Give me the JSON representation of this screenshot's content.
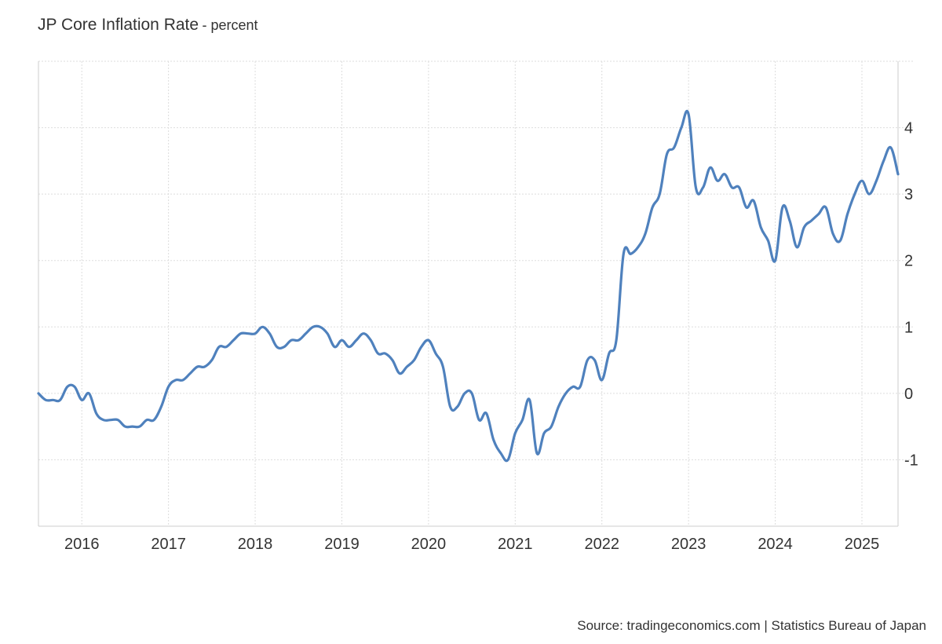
{
  "chart_title": "JP Core Inflation Rate",
  "chart_subtitle": "- percent",
  "source": "Source: tradingeconomics.com | Statistics Bureau of Japan",
  "colors": {
    "line": "#4f81bd",
    "grid": "#dddddd",
    "axis": "#cccccc",
    "text": "#333333"
  },
  "chart_data": {
    "type": "line",
    "title": "JP Core Inflation Rate",
    "subtitle": "- percent",
    "xlabel": "",
    "ylabel": "",
    "x_ticks": [
      "2016",
      "2017",
      "2018",
      "2019",
      "2020",
      "2021",
      "2022",
      "2023",
      "2024",
      "2025"
    ],
    "y_ticks": [
      "-1",
      "0",
      "1",
      "2",
      "3",
      "4"
    ],
    "xlim": [
      "2015-07",
      "2025-06"
    ],
    "ylim": [
      -2,
      5
    ],
    "grid": true,
    "legend": "none",
    "series": [
      {
        "x": [
          "2015-07",
          "2015-08",
          "2015-09",
          "2015-10",
          "2015-11",
          "2015-12",
          "2016-01",
          "2016-02",
          "2016-03",
          "2016-04",
          "2016-05",
          "2016-06",
          "2016-07",
          "2016-08",
          "2016-09",
          "2016-10",
          "2016-11",
          "2016-12",
          "2017-01",
          "2017-02",
          "2017-03",
          "2017-04",
          "2017-05",
          "2017-06",
          "2017-07",
          "2017-08",
          "2017-09",
          "2017-10",
          "2017-11",
          "2017-12",
          "2018-01",
          "2018-02",
          "2018-03",
          "2018-04",
          "2018-05",
          "2018-06",
          "2018-07",
          "2018-08",
          "2018-09",
          "2018-10",
          "2018-11",
          "2018-12",
          "2019-01",
          "2019-02",
          "2019-03",
          "2019-04",
          "2019-05",
          "2019-06",
          "2019-07",
          "2019-08",
          "2019-09",
          "2019-10",
          "2019-11",
          "2019-12",
          "2020-01",
          "2020-02",
          "2020-03",
          "2020-04",
          "2020-05",
          "2020-06",
          "2020-07",
          "2020-08",
          "2020-09",
          "2020-10",
          "2020-11",
          "2020-12",
          "2021-01",
          "2021-02",
          "2021-03",
          "2021-04",
          "2021-05",
          "2021-06",
          "2021-07",
          "2021-08",
          "2021-09",
          "2021-10",
          "2021-11",
          "2021-12",
          "2022-01",
          "2022-02",
          "2022-03",
          "2022-04",
          "2022-05",
          "2022-06",
          "2022-07",
          "2022-08",
          "2022-09",
          "2022-10",
          "2022-11",
          "2022-12",
          "2023-01",
          "2023-02",
          "2023-03",
          "2023-04",
          "2023-05",
          "2023-06",
          "2023-07",
          "2023-08",
          "2023-09",
          "2023-10",
          "2023-11",
          "2023-12",
          "2024-01",
          "2024-02",
          "2024-03",
          "2024-04",
          "2024-05",
          "2024-06",
          "2024-07",
          "2024-08",
          "2024-09",
          "2024-10",
          "2024-11",
          "2024-12",
          "2025-01",
          "2025-02",
          "2025-03",
          "2025-04",
          "2025-05",
          "2025-06"
        ],
        "values": [
          0.0,
          -0.1,
          -0.1,
          -0.1,
          0.1,
          0.1,
          -0.1,
          0.0,
          -0.3,
          -0.4,
          -0.4,
          -0.4,
          -0.5,
          -0.5,
          -0.5,
          -0.4,
          -0.4,
          -0.2,
          0.1,
          0.2,
          0.2,
          0.3,
          0.4,
          0.4,
          0.5,
          0.7,
          0.7,
          0.8,
          0.9,
          0.9,
          0.9,
          1.0,
          0.9,
          0.7,
          0.7,
          0.8,
          0.8,
          0.9,
          1.0,
          1.0,
          0.9,
          0.7,
          0.8,
          0.7,
          0.8,
          0.9,
          0.8,
          0.6,
          0.6,
          0.5,
          0.3,
          0.4,
          0.5,
          0.7,
          0.8,
          0.6,
          0.4,
          -0.2,
          -0.2,
          0.0,
          0.0,
          -0.4,
          -0.3,
          -0.7,
          -0.9,
          -1.0,
          -0.6,
          -0.4,
          -0.1,
          -0.9,
          -0.6,
          -0.5,
          -0.2,
          0.0,
          0.1,
          0.1,
          0.5,
          0.5,
          0.2,
          0.6,
          0.8,
          2.1,
          2.1,
          2.2,
          2.4,
          2.8,
          3.0,
          3.6,
          3.7,
          4.0,
          4.2,
          3.1,
          3.1,
          3.4,
          3.2,
          3.3,
          3.1,
          3.1,
          2.8,
          2.9,
          2.5,
          2.3,
          2.0,
          2.8,
          2.6,
          2.2,
          2.5,
          2.6,
          2.7,
          2.8,
          2.4,
          2.3,
          2.7,
          3.0,
          3.2,
          3.0,
          3.2,
          3.5,
          3.7,
          3.3
        ]
      }
    ]
  }
}
